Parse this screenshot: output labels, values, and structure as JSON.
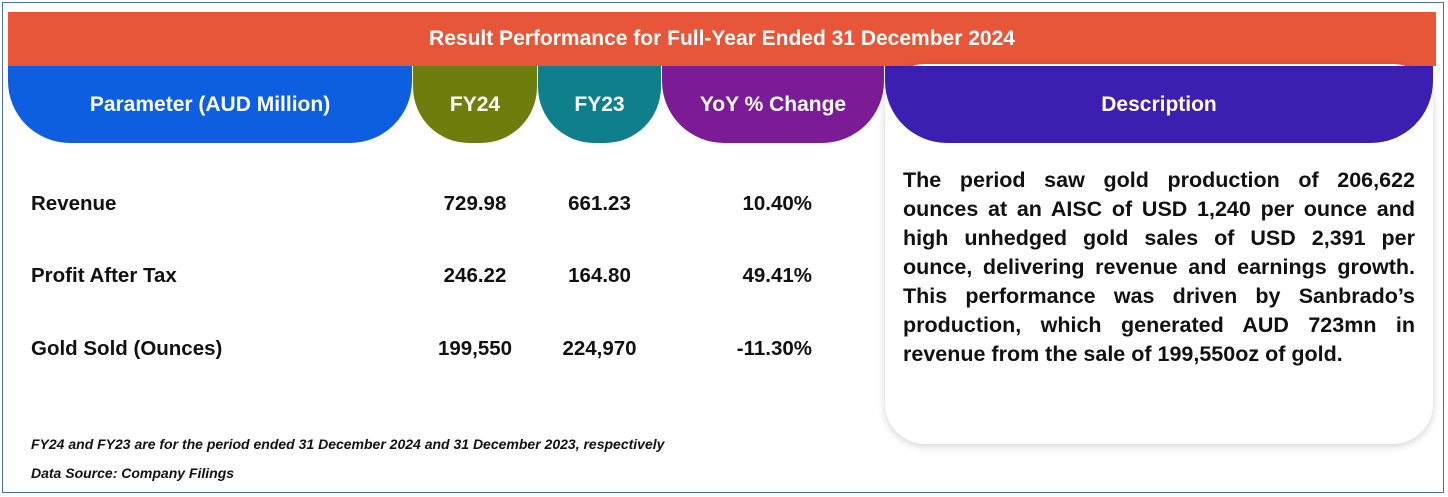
{
  "title": "Result Performance for Full-Year Ended 31 December 2024",
  "headers": {
    "parameter": "Parameter (AUD Million)",
    "fy24": "FY24",
    "fy23": "FY23",
    "yoy": "YoY % Change",
    "description": "Description"
  },
  "rows": [
    {
      "label": "Revenue",
      "fy24": "729.98",
      "fy23": "661.23",
      "yoy": "10.40%"
    },
    {
      "label": "Profit After Tax",
      "fy24": "246.22",
      "fy23": "164.80",
      "yoy": "49.41%"
    },
    {
      "label": "Gold Sold (Ounces)",
      "fy24": "199,550",
      "fy23": "224,970",
      "yoy": "-11.30%"
    }
  ],
  "description": "The period saw gold production of 206,622 ounces at an AISC of USD 1,240 per ounce and high unhedged gold sales of USD 2,391 per ounce, delivering revenue and earnings growth. This performance was driven by Sanbrado’s production, which generated AUD 723mn in revenue from the sale of 199,550oz of gold.",
  "footnotes": {
    "note": "FY24 and FY23 are for the period ended 31 December 2024 and 31 December 2023, respectively",
    "source": "Data Source: Company Filings"
  },
  "colors": {
    "title_bar": "#e8563a",
    "parameter_header": "#0d5fe0",
    "fy24_header": "#6e7e0d",
    "fy23_header": "#0f7f8c",
    "yoy_header": "#7b1b95",
    "description_header": "#3a1fb0"
  }
}
